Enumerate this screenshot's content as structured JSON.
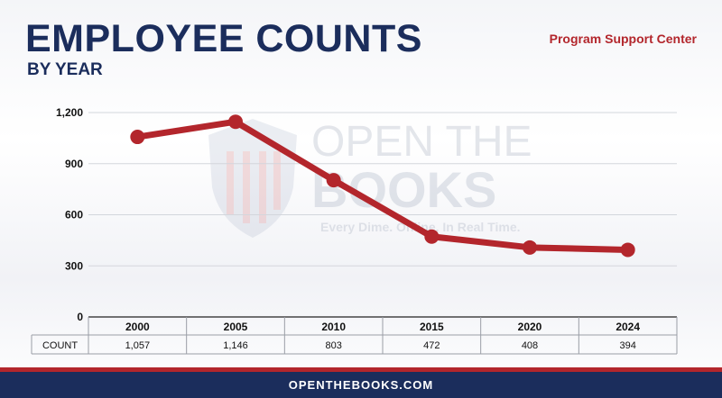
{
  "header": {
    "title": "EMPLOYEE COUNTS",
    "subtitle": "BY YEAR",
    "center": "Program Support Center"
  },
  "watermark": {
    "line1": "OPEN THE",
    "line2": "BOOKS",
    "tagline": "Every Dime. Online. In Real Time."
  },
  "table": {
    "row_label": "COUNT"
  },
  "footer": {
    "site": "OPENTHEBOOKS.COM"
  },
  "colors": {
    "navy": "#1b2d5c",
    "red": "#b3262c"
  },
  "chart_data": {
    "type": "line",
    "categories": [
      "2000",
      "2005",
      "2010",
      "2015",
      "2020",
      "2024"
    ],
    "values": [
      1057,
      1146,
      803,
      472,
      408,
      394
    ],
    "value_labels": [
      "1,057",
      "1,146",
      "803",
      "472",
      "408",
      "394"
    ],
    "yticks": [
      0,
      300,
      600,
      900,
      1200
    ],
    "ytick_labels": [
      "0",
      "300",
      "600",
      "900",
      "1,200"
    ],
    "ylim": [
      0,
      1200
    ],
    "grid": true,
    "legend": "none",
    "series_color": "#b3262c"
  }
}
